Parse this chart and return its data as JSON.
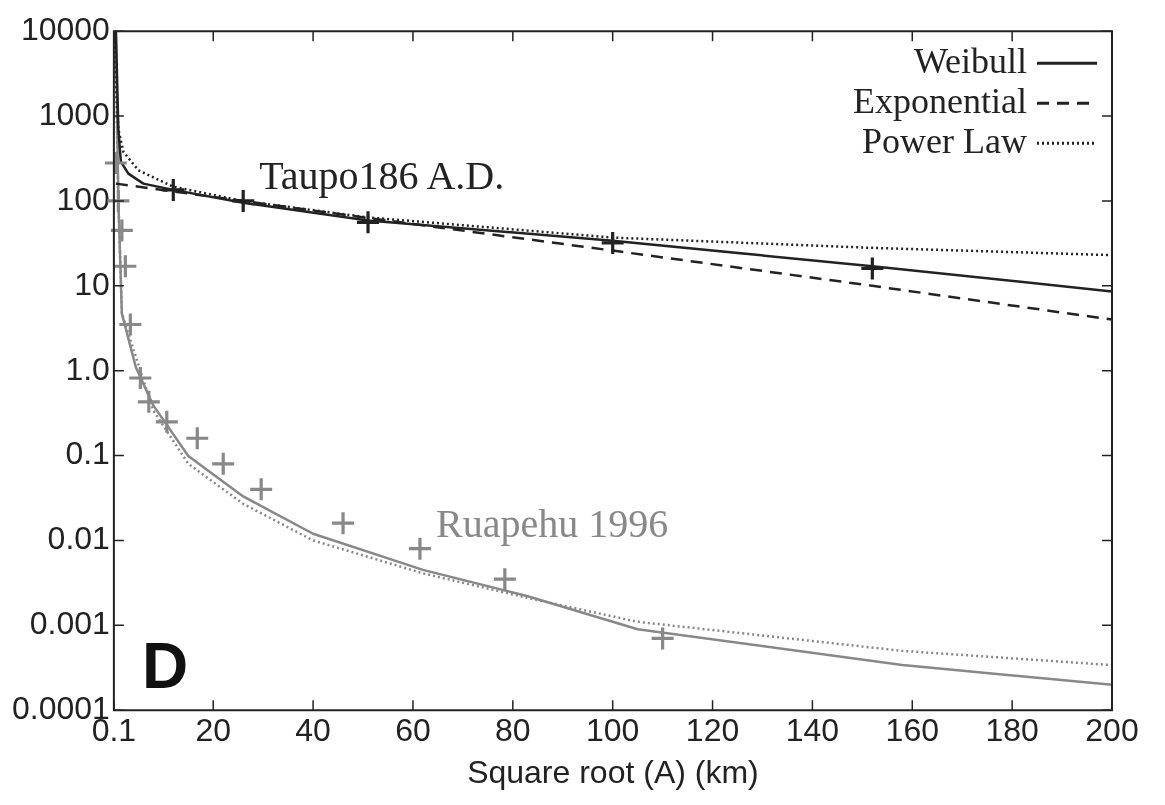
{
  "chart_data": {
    "type": "line",
    "xlabel": "Square root (A) (km)",
    "log": "y",
    "grid": false,
    "legend": "top right",
    "xlim": [
      0.1,
      200
    ],
    "xticks": [
      0.1,
      20,
      40,
      60,
      80,
      100,
      120,
      140,
      160,
      180,
      200
    ],
    "ylim": [
      0.0001,
      10000
    ],
    "yticks": [
      10000,
      1000,
      100,
      10,
      {
        "value": 1,
        "label": "1.0"
      },
      0.1,
      0.01,
      0.001,
      0.0001
    ],
    "series": [
      {
        "name": "Weibull",
        "color": "#222222",
        "line_style": "solid",
        "x": [
          0.5,
          1,
          1.5,
          3,
          6,
          12,
          26,
          51,
          100,
          152,
          200
        ],
        "values": [
          10000,
          700,
          290,
          210,
          160,
          135,
          95,
          59,
          34,
          17,
          8.6
        ]
      },
      {
        "name": "Exponential",
        "color": "#222222",
        "line_style": "dashed",
        "x": [
          0.5,
          51,
          100,
          152,
          200
        ],
        "values": [
          160,
          63,
          26,
          10,
          4.0
        ]
      },
      {
        "name": "Power Law",
        "color": "#222222",
        "line_style": "dotted",
        "x": [
          0.3,
          0.6,
          1,
          2,
          5,
          12,
          26,
          51,
          100,
          152,
          200
        ],
        "values": [
          10000,
          2000,
          700,
          380,
          230,
          147,
          100,
          64,
          37,
          28,
          23
        ]
      },
      {
        "type": "scatter",
        "color": "#222222",
        "marker": "cross",
        "x": [
          12,
          26,
          51,
          100,
          152
        ],
        "values": [
          135,
          100,
          56,
          32,
          16
        ]
      },
      {
        "type": "scatter",
        "color": "#888888",
        "marker": "cross",
        "x": [
          0.5,
          1,
          1.7,
          2.4,
          3.4,
          5.4,
          7.1,
          10.7,
          16.8,
          22,
          29.6,
          46,
          61.4,
          78.4,
          110
        ],
        "values": [
          280,
          100,
          45,
          17,
          3.5,
          0.82,
          0.43,
          0.25,
          0.16,
          0.08,
          0.04,
          0.016,
          0.008,
          0.0035,
          0.0007
        ]
      },
      {
        "color": "#888888",
        "line_style": "solid",
        "x": [
          0.5,
          1,
          1.7,
          4.5,
          8,
          15,
          26,
          40,
          62,
          83,
          105,
          158,
          200
        ],
        "values": [
          10000,
          100,
          4.7,
          1.1,
          0.39,
          0.099,
          0.033,
          0.012,
          0.0045,
          0.0022,
          0.0009,
          0.00034,
          0.0002
        ]
      },
      {
        "color": "#888888",
        "line_style": "dotted",
        "x": [
          0.3,
          1,
          1.7,
          8,
          15,
          26,
          40,
          62,
          83,
          105,
          158,
          200
        ],
        "values": [
          10000,
          100,
          4.7,
          0.34,
          0.08,
          0.027,
          0.01,
          0.0041,
          0.0021,
          0.0011,
          0.0005,
          0.00034
        ]
      }
    ],
    "annotations": [
      {
        "text": "Taupo186 A.D.",
        "x": 26,
        "y": 100
      },
      {
        "text": "Ruapehu 1996",
        "x": 61.4,
        "y": 0.008
      },
      "D"
    ]
  }
}
